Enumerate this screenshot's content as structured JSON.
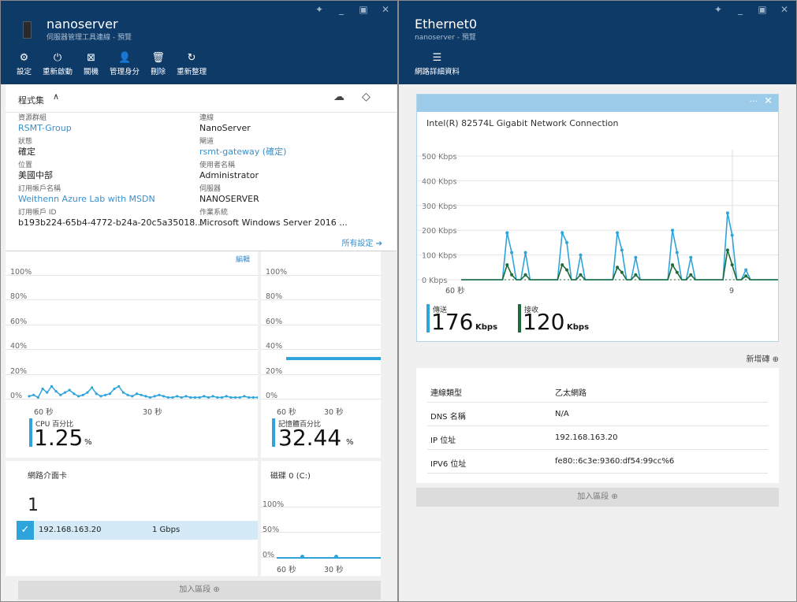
{
  "left": {
    "title": "nanoserver",
    "subtitle": "伺服器管理工具連線 - 預覽",
    "toolbar": [
      {
        "icon": "gear-icon",
        "glyph": "⚙",
        "label": "設定"
      },
      {
        "icon": "power-icon",
        "glyph": "⏻",
        "label": "重新啟動"
      },
      {
        "icon": "shutdown-icon",
        "glyph": "⊠",
        "label": "關機"
      },
      {
        "icon": "user-admin-icon",
        "glyph": "👤",
        "label": "管理身分"
      },
      {
        "icon": "trash-icon",
        "glyph": "🗑",
        "label": "刪除"
      },
      {
        "icon": "refresh-icon",
        "glyph": "↻",
        "label": "重新整理"
      }
    ],
    "essentials": {
      "title": "程式集",
      "items_left": [
        {
          "key": "資源群組",
          "value": "RSMT-Group",
          "link": true
        },
        {
          "key": "狀態",
          "value": "確定",
          "link": false
        },
        {
          "key": "位置",
          "value": "美國中部",
          "link": false
        },
        {
          "key": "訂用帳戶名稱",
          "value": "Weithenn Azure Lab with MSDN",
          "link": true
        },
        {
          "key": "訂用帳戶 ID",
          "value": "b193b224-65b4-4772-b24a-20c5a35018...",
          "link": false
        }
      ],
      "items_right": [
        {
          "key": "連線",
          "value": "NanoServer",
          "link": false
        },
        {
          "key": "閘道",
          "value": "rsmt-gateway (確定)",
          "link": true
        },
        {
          "key": "使用者名稱",
          "value": "Administrator",
          "link": false
        },
        {
          "key": "伺服器",
          "value": "NANOSERVER",
          "link": false
        },
        {
          "key": "作業系統",
          "value": "Microsoft Windows Server 2016 ...",
          "link": false
        }
      ],
      "all_settings": "所有設定 ➔"
    },
    "cpu_tile": {
      "edit": "編輯",
      "y_labels": [
        "100%",
        "80%",
        "60%",
        "40%",
        "20%",
        "0%"
      ],
      "x_labels": [
        "60 秒",
        "30 秒"
      ],
      "metric_label": "CPU 百分比",
      "metric_value": "1.25",
      "metric_unit": "%",
      "color": "#2fa4dc",
      "series": [
        2,
        3,
        1,
        8,
        5,
        10,
        6,
        3,
        5,
        7,
        4,
        2,
        3,
        5,
        9,
        4,
        2,
        3,
        4,
        8,
        10,
        5,
        3,
        2,
        4,
        3,
        2,
        1,
        2,
        3,
        2,
        1,
        1,
        2,
        1,
        2,
        1,
        1,
        1,
        2,
        1,
        2,
        1,
        1,
        2,
        1,
        1,
        1,
        2,
        1,
        1,
        1
      ]
    },
    "memory_tile": {
      "y_labels": [
        "100%",
        "80%",
        "60%",
        "40%",
        "20%",
        "0%"
      ],
      "x_labels": [
        "60 秒",
        "30 秒"
      ],
      "metric_label": "記憶體百分比",
      "metric_value": "32.44",
      "metric_unit": "%",
      "color": "#2fa4dc",
      "level": 32.44
    },
    "network_tile": {
      "title": "網路介面卡",
      "count": "1",
      "row": {
        "ip": "192.168.163.20",
        "speed": "1 Gbps"
      }
    },
    "disk_tile": {
      "title": "磁碟 0 (C:)",
      "y_labels": [
        "100%",
        "50%",
        "0%"
      ],
      "x_labels": [
        "60 秒",
        "30 秒"
      ]
    },
    "add_section": "加入區段 ⊕"
  },
  "right": {
    "title": "Ethernet0",
    "subtitle": "nanoserver - 預覽",
    "toolbar_label": "網路詳細資料",
    "chart": {
      "type": "line",
      "title": "Intel(R) 82574L Gigabit Network Connection",
      "y_labels": [
        "500 Kbps",
        "400 Kbps",
        "300 Kbps",
        "200 Kbps",
        "100 Kbps",
        "0 Kbps"
      ],
      "ylim": [
        0,
        500
      ],
      "x_labels": [
        "60 秒",
        "9"
      ],
      "series": [
        {
          "name": "傳送",
          "color": "#2fa4dc",
          "values": [
            0,
            0,
            0,
            0,
            0,
            0,
            0,
            0,
            0,
            0,
            190,
            110,
            0,
            0,
            110,
            0,
            0,
            0,
            0,
            0,
            0,
            0,
            190,
            150,
            0,
            0,
            100,
            0,
            0,
            0,
            0,
            0,
            0,
            0,
            190,
            120,
            0,
            0,
            90,
            0,
            0,
            0,
            0,
            0,
            0,
            0,
            200,
            110,
            0,
            0,
            90,
            0,
            0,
            0,
            0,
            0,
            0,
            0,
            270,
            180,
            0,
            0,
            40,
            0,
            0,
            0,
            0,
            0,
            0,
            0
          ]
        },
        {
          "name": "接收",
          "color": "#1e6b3a",
          "values": [
            0,
            0,
            0,
            0,
            0,
            0,
            0,
            0,
            0,
            0,
            60,
            20,
            0,
            0,
            20,
            0,
            0,
            0,
            0,
            0,
            0,
            0,
            60,
            40,
            0,
            0,
            20,
            0,
            0,
            0,
            0,
            0,
            0,
            0,
            50,
            30,
            0,
            0,
            20,
            0,
            0,
            0,
            0,
            0,
            0,
            0,
            60,
            30,
            0,
            0,
            20,
            0,
            0,
            0,
            0,
            0,
            0,
            0,
            120,
            60,
            0,
            0,
            15,
            0,
            0,
            0,
            0,
            0,
            0,
            0
          ]
        }
      ]
    },
    "metrics": [
      {
        "label": "傳送",
        "value": "176",
        "unit": "Kbps",
        "color": "#2fa4dc"
      },
      {
        "label": "接收",
        "value": "120",
        "unit": "Kbps",
        "color": "#1e6b3a"
      }
    ],
    "add_tile": "新增磚 ⊕",
    "properties": [
      {
        "key": "連線類型",
        "value": "乙太網路"
      },
      {
        "key": "DNS 名稱",
        "value": "N/A"
      },
      {
        "key": "IP 位址",
        "value": "192.168.163.20"
      },
      {
        "key": "IPV6 位址",
        "value": "fe80::6c3e:9360:df54:99cc%6"
      }
    ],
    "add_section": "加入區段 ⊕"
  }
}
